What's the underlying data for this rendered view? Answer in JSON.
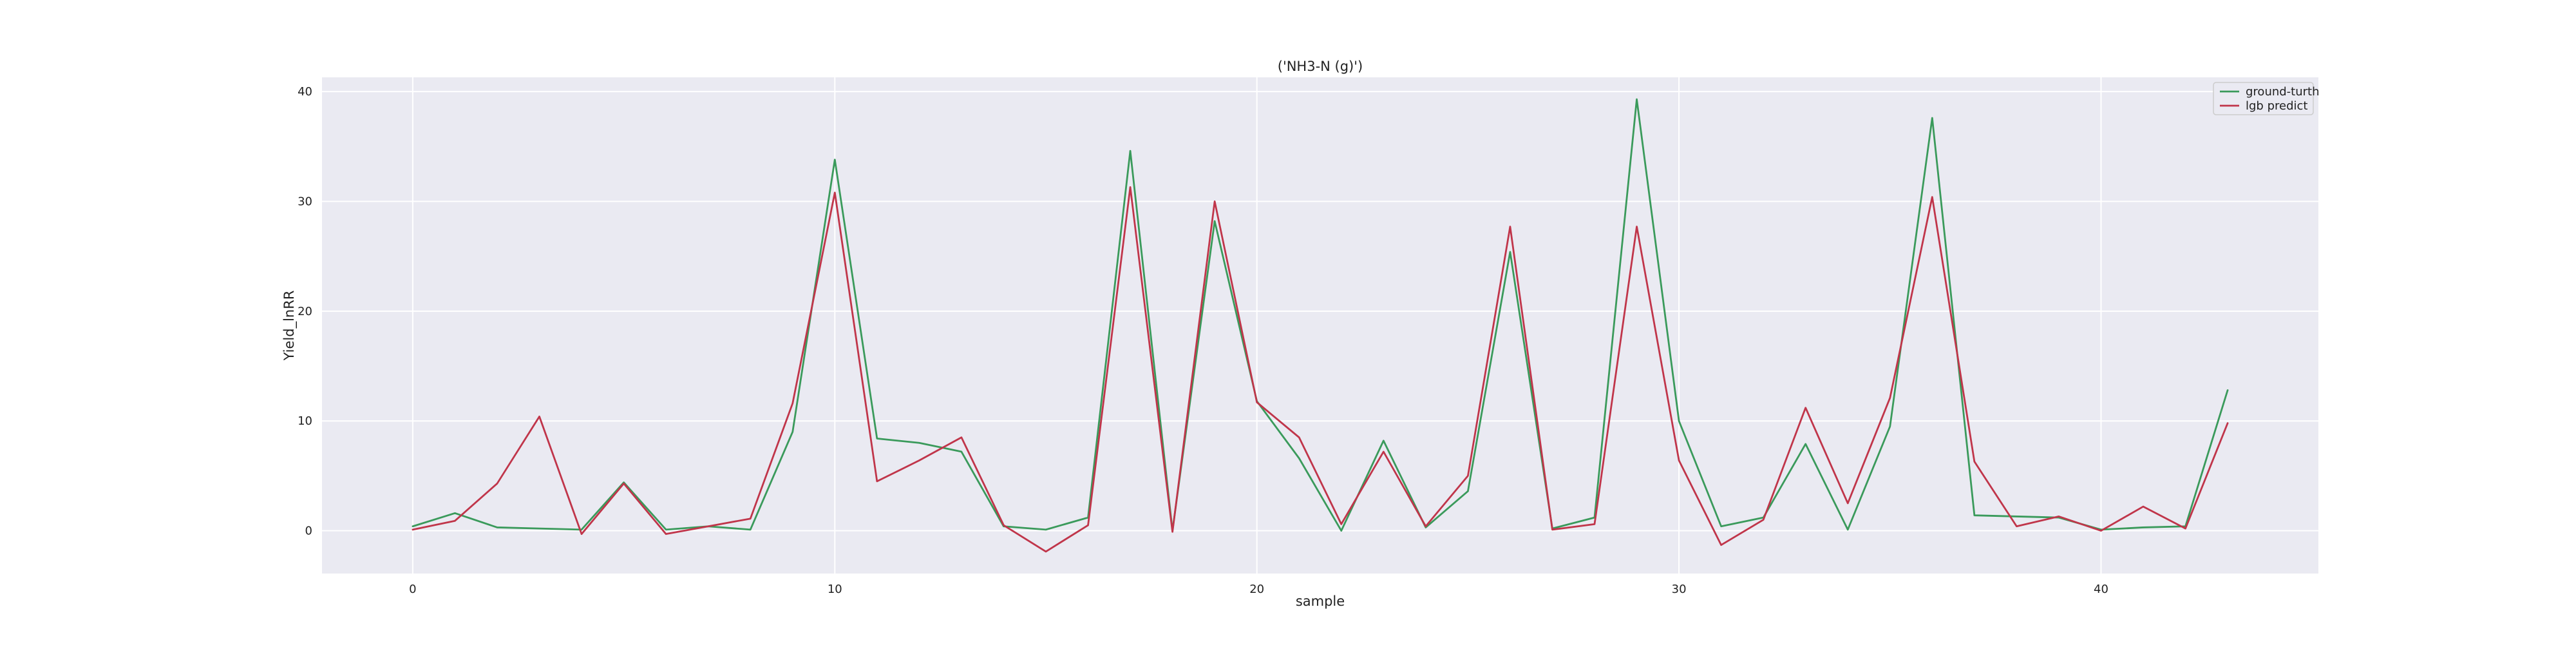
{
  "chart_data": {
    "type": "line",
    "title": "('NH3-N (g)')",
    "xlabel": "sample",
    "ylabel": "Yield_lnRR",
    "xlim": [
      -2.15,
      45.15
    ],
    "ylim": [
      -3.9,
      41.3
    ],
    "x_ticks": [
      0,
      10,
      20,
      30,
      40
    ],
    "y_ticks": [
      0,
      10,
      20,
      30,
      40
    ],
    "grid": true,
    "legend_position": "top-right",
    "x": [
      0,
      1,
      2,
      3,
      4,
      5,
      6,
      7,
      8,
      9,
      10,
      11,
      12,
      13,
      14,
      15,
      16,
      17,
      18,
      19,
      20,
      21,
      22,
      23,
      24,
      25,
      26,
      27,
      28,
      29,
      30,
      31,
      32,
      33,
      34,
      35,
      36,
      37,
      38,
      39,
      40,
      41,
      42,
      43
    ],
    "series": [
      {
        "name": "ground-turth",
        "color": "#3a9a5b",
        "values": [
          0.4,
          1.6,
          0.3,
          0.2,
          0.1,
          4.4,
          0.1,
          0.4,
          0.1,
          9.0,
          33.8,
          8.4,
          8.0,
          7.2,
          0.4,
          0.1,
          1.2,
          34.6,
          0.0,
          28.2,
          11.8,
          6.6,
          0.0,
          8.2,
          0.3,
          3.6,
          25.4,
          0.2,
          1.2,
          39.3,
          10.0,
          0.4,
          1.2,
          7.9,
          0.1,
          9.5,
          37.6,
          1.4,
          1.3,
          1.2,
          0.1,
          0.3,
          0.4,
          12.8
        ]
      },
      {
        "name": "lgb predict",
        "color": "#c0354a",
        "values": [
          0.1,
          0.9,
          4.3,
          10.4,
          -0.3,
          4.3,
          -0.3,
          0.4,
          1.1,
          11.6,
          30.8,
          4.5,
          6.4,
          8.5,
          0.5,
          -1.9,
          0.5,
          31.3,
          -0.1,
          30.0,
          11.7,
          8.5,
          0.6,
          7.2,
          0.4,
          5.0,
          27.7,
          0.1,
          0.6,
          27.7,
          6.4,
          -1.3,
          1.0,
          11.2,
          2.5,
          12.1,
          30.4,
          6.3,
          0.4,
          1.3,
          0.0,
          2.2,
          0.2,
          9.8
        ]
      }
    ]
  }
}
